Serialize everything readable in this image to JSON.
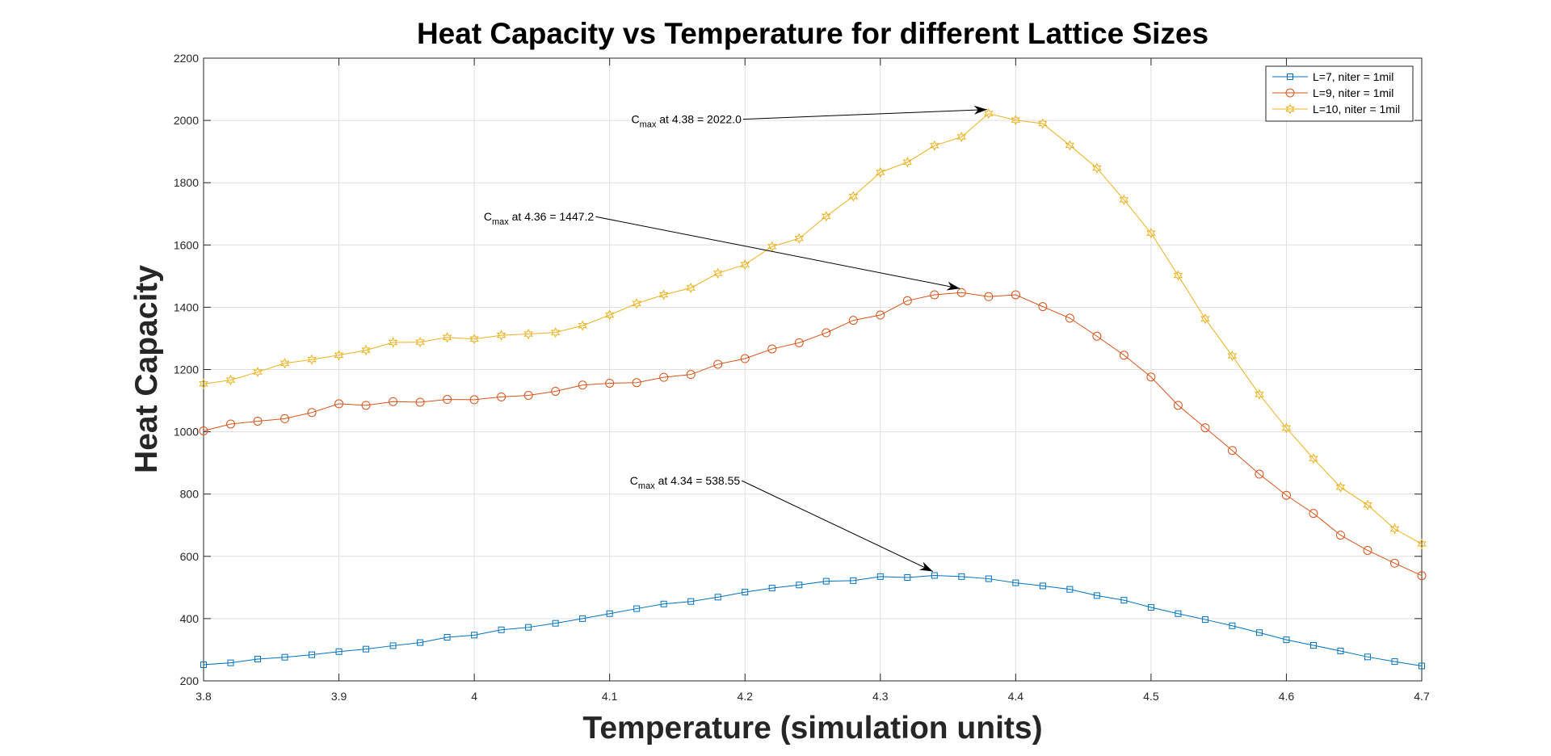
{
  "chart_data": {
    "type": "line",
    "title": "Heat Capacity vs Temperature for different Lattice Sizes",
    "xlabel": "Temperature (simulation units)",
    "ylabel": "Heat Capacity",
    "xlim": [
      3.8,
      4.7
    ],
    "ylim": [
      200,
      2200
    ],
    "xticks": [
      "3.8",
      "3.9",
      "4",
      "4.1",
      "4.2",
      "4.3",
      "4.4",
      "4.5",
      "4.6",
      "4.7"
    ],
    "yticks": [
      "200",
      "400",
      "600",
      "800",
      "1000",
      "1200",
      "1400",
      "1600",
      "1800",
      "2000",
      "2200"
    ],
    "grid": true,
    "legend_position": "top-right",
    "x": [
      3.8,
      3.82,
      3.84,
      3.86,
      3.88,
      3.9,
      3.92,
      3.94,
      3.96,
      3.98,
      4.0,
      4.02,
      4.04,
      4.06,
      4.08,
      4.1,
      4.12,
      4.14,
      4.16,
      4.18,
      4.2,
      4.22,
      4.24,
      4.26,
      4.28,
      4.3,
      4.32,
      4.34,
      4.36,
      4.38,
      4.4,
      4.42,
      4.44,
      4.46,
      4.48,
      4.5,
      4.52,
      4.54,
      4.56,
      4.58,
      4.6,
      4.62,
      4.64,
      4.66,
      4.68,
      4.7
    ],
    "series": [
      {
        "name": "L=7, niter = 1mil",
        "color": "#0072BD",
        "marker": "square",
        "values": [
          252,
          258,
          270,
          276,
          284,
          294,
          302,
          313,
          323,
          340,
          347,
          364,
          372,
          385,
          400,
          416,
          432,
          447,
          455,
          469,
          485,
          498,
          508,
          520,
          522,
          535,
          532,
          538.55,
          535,
          528,
          515,
          505,
          494,
          474,
          459,
          436,
          416,
          397,
          377,
          355,
          332,
          314,
          296,
          277,
          262,
          248
        ]
      },
      {
        "name": "L=9, niter = 1mil",
        "color": "#D95319",
        "marker": "circle",
        "values": [
          1003,
          1025,
          1034,
          1042,
          1062,
          1090,
          1085,
          1097,
          1095,
          1104,
          1103,
          1112,
          1117,
          1130,
          1150,
          1156,
          1158,
          1175,
          1184,
          1217,
          1235,
          1266,
          1286,
          1318,
          1358,
          1375,
          1421,
          1440,
          1447.2,
          1434,
          1440,
          1402,
          1365,
          1307,
          1246,
          1176,
          1085,
          1013,
          940,
          864,
          796,
          738,
          668,
          619,
          578,
          538
        ]
      },
      {
        "name": "L=10, niter = 1mil",
        "color": "#EDB120",
        "marker": "hexagram",
        "values": [
          1154,
          1166,
          1192,
          1220,
          1232,
          1246,
          1262,
          1287,
          1288,
          1303,
          1298,
          1310,
          1314,
          1319,
          1341,
          1375,
          1412,
          1440,
          1462,
          1509,
          1537,
          1595,
          1621,
          1692,
          1756,
          1833,
          1866,
          1919,
          1947,
          2022.0,
          2001,
          1990,
          1920,
          1847,
          1745,
          1638,
          1502,
          1363,
          1244,
          1120,
          1012,
          914,
          822,
          765,
          688,
          640
        ]
      }
    ],
    "annotations": [
      {
        "prefix": "C",
        "sub": "max",
        "text": " at 4.36 = 1447.2",
        "text_x": 4.007,
        "text_y": 1678,
        "arrow_to_x": 4.36,
        "arrow_to_y": 1447.2
      },
      {
        "prefix": "C",
        "sub": "max",
        "text": " at 4.38 = 2022.0",
        "text_x": 4.116,
        "text_y": 1991,
        "arrow_to_x": 4.38,
        "arrow_to_y": 2022.0
      },
      {
        "prefix": "C",
        "sub": "max",
        "text": " at 4.34 = 538.55",
        "text_x": 4.115,
        "text_y": 830,
        "arrow_to_x": 4.34,
        "arrow_to_y": 538.55
      }
    ]
  }
}
